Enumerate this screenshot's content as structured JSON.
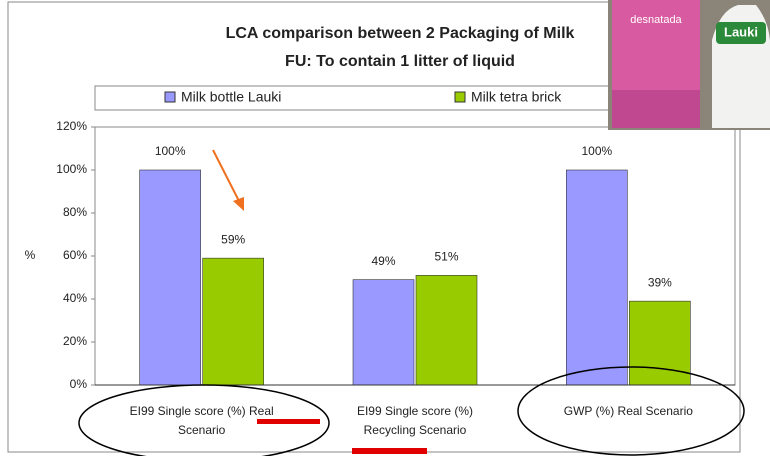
{
  "chart_data": {
    "type": "bar",
    "title": "LCA comparison between 2 Packaging of Milk",
    "subtitle": "FU: To contain 1 litter of liquid",
    "y_label": "%",
    "categories": [
      "EI99 Single score (%) Real Scenario",
      "EI99 Single score (%) Recycling Scenario",
      "GWP (%) Real Scenario"
    ],
    "series": [
      {
        "name": "Milk bottle Lauki",
        "color": "#9999ff",
        "values": [
          100,
          49,
          100
        ],
        "value_labels": [
          "100%",
          "49%",
          "100%"
        ]
      },
      {
        "name": "Milk tetra brick",
        "color": "#99cc00",
        "values": [
          59,
          51,
          39
        ],
        "value_labels": [
          "59%",
          "51%",
          "39%"
        ]
      }
    ],
    "ylim": [
      0,
      120
    ],
    "yticks": [
      {
        "value": 0,
        "label": "0%"
      },
      {
        "value": 20,
        "label": "20%"
      },
      {
        "value": 40,
        "label": "40%"
      },
      {
        "value": 60,
        "label": "60%"
      },
      {
        "value": 80,
        "label": "80%"
      },
      {
        "value": 100,
        "label": "100%"
      },
      {
        "value": 120,
        "label": "120%"
      }
    ],
    "legend": "top"
  },
  "photo": {
    "labels": [
      "desnatada",
      "Lauki"
    ]
  }
}
